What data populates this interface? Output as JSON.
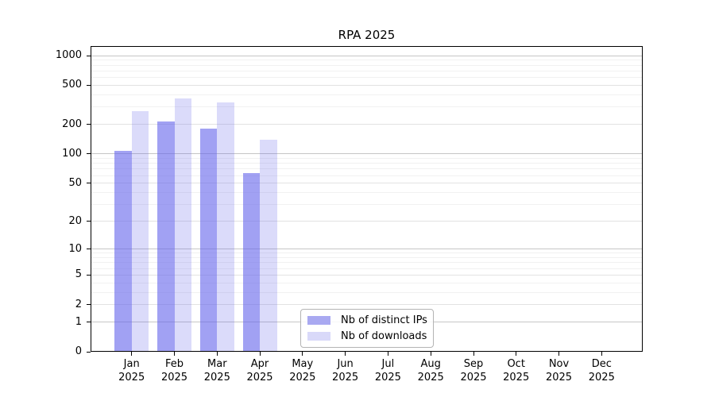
{
  "window": {
    "background": "#ffffff"
  },
  "chart_data": {
    "type": "bar",
    "title": "RPA 2025",
    "categories": [
      "Jan\n2025",
      "Feb\n2025",
      "Mar\n2025",
      "Apr\n2025",
      "May\n2025",
      "Jun\n2025",
      "Jul\n2025",
      "Aug\n2025",
      "Sep\n2025",
      "Oct\n2025",
      "Nov\n2025",
      "Dec\n2025"
    ],
    "series": [
      {
        "name": "Nb of distinct IPs",
        "color": "rgba(104,104,236,0.62)",
        "legend_swatch_color": "#a9a9f1",
        "values": [
          107,
          216,
          180,
          64,
          0,
          0,
          0,
          0,
          0,
          0,
          0,
          0
        ]
      },
      {
        "name": "Nb of downloads",
        "color": "rgba(104,104,236,0.24)",
        "legend_swatch_color": "#d9d9f9",
        "values": [
          271,
          370,
          338,
          141,
          0,
          0,
          0,
          0,
          0,
          0,
          0,
          0
        ]
      }
    ],
    "yscale": "log1p",
    "ylim": [
      0,
      1250
    ],
    "yticks": [
      0,
      1,
      2,
      5,
      10,
      20,
      50,
      100,
      200,
      500,
      1000
    ],
    "grid": "both",
    "gridline_values": {
      "decade": [
        1,
        10,
        100,
        1000
      ],
      "sub": [
        2,
        5,
        20,
        50,
        200,
        500
      ],
      "minor": [
        3,
        4,
        6,
        7,
        8,
        9,
        30,
        40,
        60,
        70,
        80,
        90,
        300,
        400,
        600,
        700,
        800,
        900
      ]
    },
    "legend_position": "lower center",
    "axis_color": "#000000"
  }
}
